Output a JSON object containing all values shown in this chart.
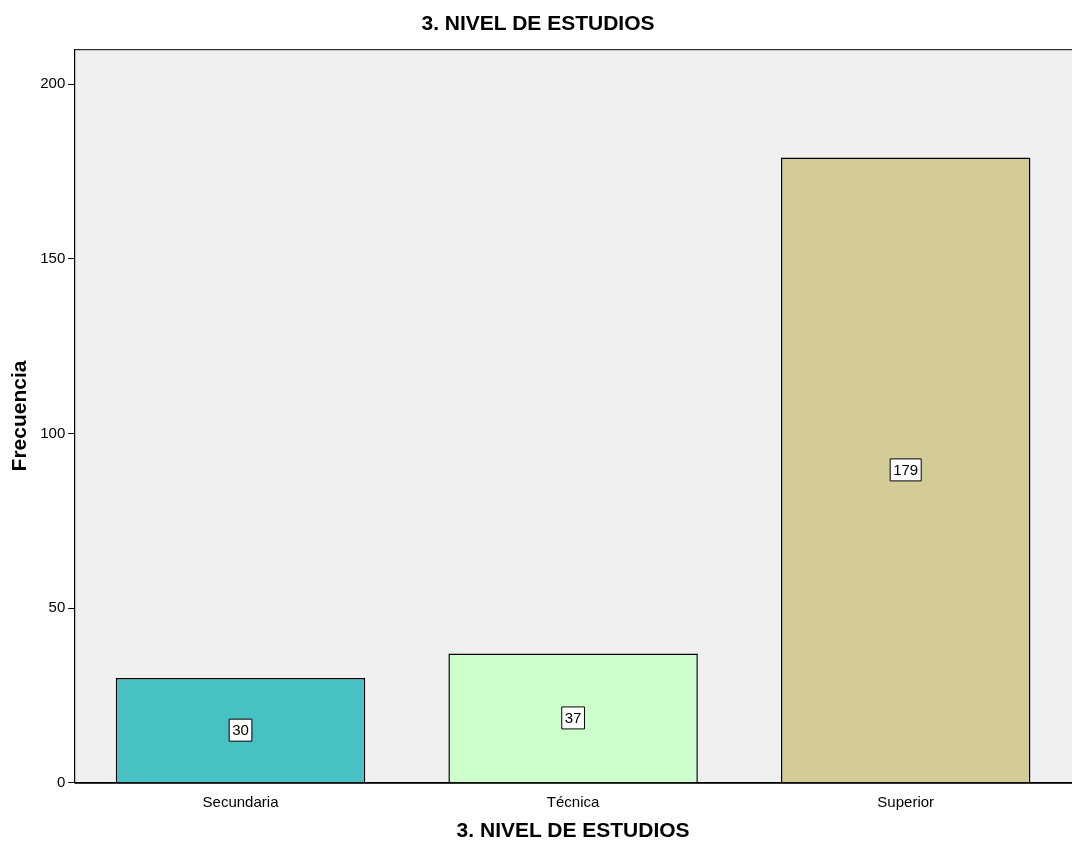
{
  "chart_data": {
    "type": "bar",
    "title": "3. NIVEL DE ESTUDIOS",
    "xlabel": "3. NIVEL DE ESTUDIOS",
    "ylabel": "Frecuencia",
    "categories": [
      "Secundaria",
      "Técnica",
      "Superior"
    ],
    "values": [
      30,
      37,
      179
    ],
    "colors": [
      "#47c1c4",
      "#ccffcc",
      "#d4cc96"
    ],
    "ylim": [
      0,
      210
    ],
    "yticks": [
      0,
      50,
      100,
      150,
      200
    ],
    "grid": false,
    "legend": false,
    "data_labels": true
  }
}
